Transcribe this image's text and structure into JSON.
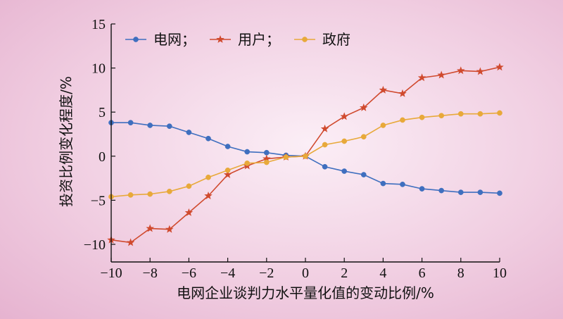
{
  "chart_data": {
    "type": "line",
    "xlabel": "电网企业谈判力水平量化值的变动比例/%",
    "ylabel": "投资比例变化程度/%",
    "xlim": [
      -10,
      10
    ],
    "ylim": [
      -12,
      15
    ],
    "xticks": [
      -10,
      -8,
      -6,
      -4,
      -2,
      0,
      2,
      4,
      6,
      8,
      10
    ],
    "yticks": [
      -10,
      -5,
      0,
      5,
      10,
      15
    ],
    "legend_position": "top-left",
    "grid": false,
    "x": [
      -10,
      -9,
      -8,
      -7,
      -6,
      -5,
      -4,
      -3,
      -2,
      -1,
      0,
      1,
      2,
      3,
      4,
      5,
      6,
      7,
      8,
      9,
      10
    ],
    "series": [
      {
        "name": "电网；",
        "color": "#3f6fbf",
        "marker": "circle",
        "values": [
          3.8,
          3.8,
          3.5,
          3.4,
          2.7,
          2.0,
          1.1,
          0.5,
          0.4,
          0.1,
          0.0,
          -1.2,
          -1.7,
          -2.1,
          -3.1,
          -3.2,
          -3.7,
          -3.9,
          -4.1,
          -4.1,
          -4.2
        ]
      },
      {
        "name": "用户；",
        "color": "#d04a2e",
        "marker": "star",
        "values": [
          -9.5,
          -9.8,
          -8.2,
          -8.3,
          -6.4,
          -4.5,
          -2.1,
          -1.1,
          -0.3,
          -0.1,
          0.0,
          3.1,
          4.5,
          5.5,
          7.5,
          7.1,
          8.9,
          9.2,
          9.7,
          9.6,
          10.1
        ]
      },
      {
        "name": "政府",
        "color": "#e8a93a",
        "marker": "circle",
        "values": [
          -4.6,
          -4.4,
          -4.3,
          -4.0,
          -3.4,
          -2.4,
          -1.6,
          -0.8,
          -0.7,
          -0.1,
          0.0,
          1.3,
          1.7,
          2.2,
          3.5,
          4.1,
          4.4,
          4.6,
          4.8,
          4.8,
          4.9
        ]
      }
    ]
  }
}
